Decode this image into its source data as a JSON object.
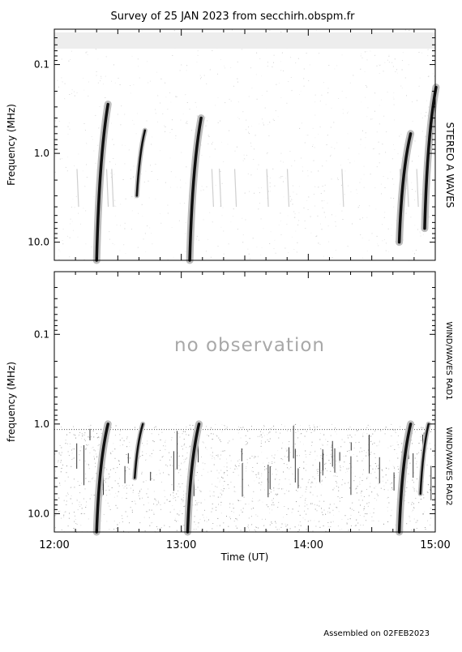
{
  "title": "Survey of 25 JAN 2023 from secchirh.obspm.fr",
  "footer": "Assembled on 02FEB2023",
  "no_observation": "no observation",
  "colors": {
    "axis": "#000000",
    "burst": "#111111",
    "noobs": "#a8a8a8",
    "band": "#ededed"
  },
  "chart_data": [
    {
      "type": "heatmap",
      "ylabel": "Frequency (MHz)",
      "right_label": "STEREO A WAVES",
      "y_scale": "log",
      "y_inverted": true,
      "ylim": [
        0.04,
        16
      ],
      "yticks": [
        0.1,
        1.0,
        10.0
      ],
      "ytick_labels": [
        "0.1",
        "1.0",
        "10.0"
      ],
      "xlim": [
        "12:00",
        "15:00"
      ],
      "bursts": [
        {
          "time": "12:20",
          "freq_from": 0.28,
          "freq_to": 16
        },
        {
          "time": "12:39",
          "freq_from": 0.55,
          "freq_to": 3.0
        },
        {
          "time": "13:04",
          "freq_from": 0.4,
          "freq_to": 16
        },
        {
          "time": "14:43",
          "freq_from": 0.6,
          "freq_to": 10
        },
        {
          "time": "14:55",
          "freq_from": 0.18,
          "freq_to": 7
        }
      ]
    },
    {
      "type": "heatmap",
      "ylabel": "frequency (MHz)",
      "right_label_top": "WIND/WAVES RAD1",
      "right_label_bottom": "WIND/WAVES RAD2",
      "y_scale": "log",
      "y_inverted": true,
      "ylim": [
        0.02,
        16
      ],
      "yticks": [
        0.1,
        1.0,
        10.0
      ],
      "ytick_labels": [
        "0.1",
        "1.0",
        "10.0"
      ],
      "xlabel": "Time (UT)",
      "xlim": [
        "12:00",
        "15:00"
      ],
      "xtick_labels": [
        "12:00",
        "13:00",
        "14:00",
        "15:00"
      ],
      "data_freq_range": [
        1.0,
        16
      ],
      "bursts": [
        {
          "time": "12:20",
          "freq_from": 1.0,
          "freq_to": 16
        },
        {
          "time": "12:38",
          "freq_from": 1.0,
          "freq_to": 4.0
        },
        {
          "time": "13:03",
          "freq_from": 1.0,
          "freq_to": 16
        },
        {
          "time": "14:43",
          "freq_from": 1.0,
          "freq_to": 16
        },
        {
          "time": "14:53",
          "freq_from": 1.0,
          "freq_to": 6.0
        }
      ]
    }
  ]
}
